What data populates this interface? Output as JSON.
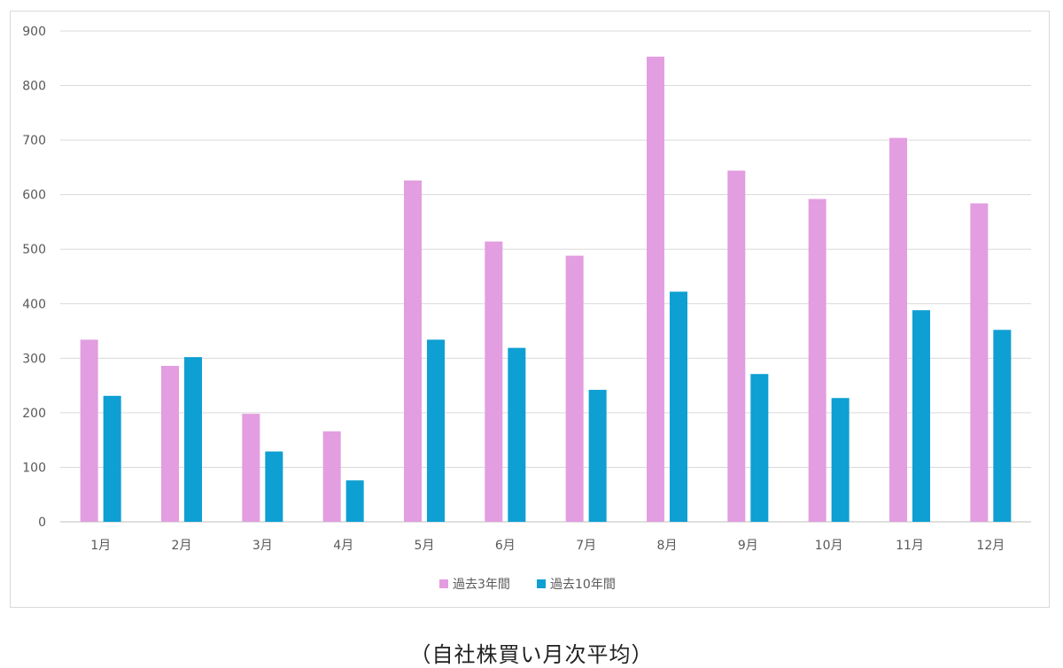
{
  "chart_data": {
    "type": "bar",
    "categories": [
      "1月",
      "2月",
      "3月",
      "4月",
      "5月",
      "6月",
      "7月",
      "8月",
      "9月",
      "10月",
      "11月",
      "12月"
    ],
    "series": [
      {
        "name": "過去3年間",
        "color": "#e29ee0",
        "values": [
          334,
          286,
          198,
          166,
          626,
          514,
          488,
          853,
          644,
          592,
          704,
          584
        ]
      },
      {
        "name": "過去10年間",
        "color": "#0e9fd3",
        "values": [
          231,
          302,
          129,
          76,
          334,
          319,
          242,
          422,
          271,
          227,
          388,
          352
        ]
      }
    ],
    "ylim": [
      0,
      900
    ],
    "yticks": [
      "0",
      "100",
      "200",
      "300",
      "400",
      "500",
      "600",
      "700",
      "800",
      "900"
    ],
    "grid": true,
    "legend": "bottom-center",
    "xlabel": "",
    "ylabel": ""
  },
  "caption": "（自社株買い月次平均）"
}
